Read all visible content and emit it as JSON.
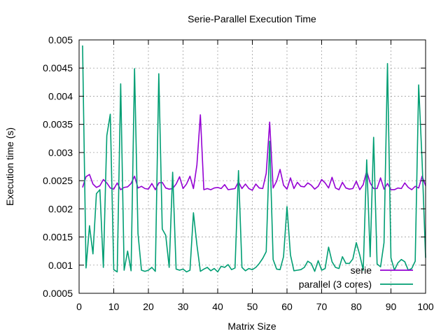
{
  "chart_data": {
    "type": "line",
    "title": "Serie-Parallel Execution Time",
    "xlabel": "Matrix Size",
    "ylabel": "Execution time (s)",
    "xlim": [
      0,
      100
    ],
    "ylim": [
      0.0005,
      0.005
    ],
    "xticks": [
      0,
      10,
      20,
      30,
      40,
      50,
      60,
      70,
      80,
      90,
      100
    ],
    "yticks": [
      0.0005,
      0.001,
      0.0015,
      0.002,
      0.0025,
      0.003,
      0.0035,
      0.004,
      0.0045,
      0.005
    ],
    "ytick_labels": [
      "0.0005",
      "0.001",
      "0.0015",
      "0.002",
      "0.0025",
      "0.003",
      "0.0035",
      "0.004",
      "0.0045",
      "0.005"
    ],
    "grid": true,
    "legend_position": "bottom-right",
    "x": [
      1,
      2,
      3,
      4,
      5,
      6,
      7,
      8,
      9,
      10,
      11,
      12,
      13,
      14,
      15,
      16,
      17,
      18,
      19,
      20,
      21,
      22,
      23,
      24,
      25,
      26,
      27,
      28,
      29,
      30,
      31,
      32,
      33,
      34,
      35,
      36,
      37,
      38,
      39,
      40,
      41,
      42,
      43,
      44,
      45,
      46,
      47,
      48,
      49,
      50,
      51,
      52,
      53,
      54,
      55,
      56,
      57,
      58,
      59,
      60,
      61,
      62,
      63,
      64,
      65,
      66,
      67,
      68,
      69,
      70,
      71,
      72,
      73,
      74,
      75,
      76,
      77,
      78,
      79,
      80,
      81,
      82,
      83,
      84,
      85,
      86,
      87,
      88,
      89,
      90,
      91,
      92,
      93,
      94,
      95,
      96,
      97,
      98,
      99,
      100
    ],
    "series": [
      {
        "name": "serie",
        "color": "#9400d3",
        "values": [
          0.00238,
          0.00257,
          0.00261,
          0.00244,
          0.00238,
          0.00241,
          0.00252,
          0.00246,
          0.00237,
          0.00235,
          0.00246,
          0.00234,
          0.00238,
          0.00239,
          0.00245,
          0.00258,
          0.00237,
          0.0024,
          0.00236,
          0.00235,
          0.00245,
          0.00234,
          0.00246,
          0.00247,
          0.00237,
          0.00235,
          0.00236,
          0.00244,
          0.00257,
          0.00236,
          0.00244,
          0.00258,
          0.00236,
          0.00278,
          0.00367,
          0.00234,
          0.00236,
          0.00234,
          0.00237,
          0.00238,
          0.00236,
          0.00243,
          0.00234,
          0.00235,
          0.00236,
          0.00248,
          0.00236,
          0.00244,
          0.00236,
          0.00233,
          0.00244,
          0.00237,
          0.00236,
          0.00263,
          0.00354,
          0.00237,
          0.00249,
          0.0027,
          0.00242,
          0.00235,
          0.00255,
          0.00236,
          0.00247,
          0.0024,
          0.00239,
          0.00246,
          0.00242,
          0.00235,
          0.0024,
          0.00252,
          0.00246,
          0.00237,
          0.00256,
          0.00237,
          0.00234,
          0.00247,
          0.00237,
          0.00235,
          0.00236,
          0.00249,
          0.00234,
          0.00243,
          0.00267,
          0.00246,
          0.00236,
          0.00236,
          0.00255,
          0.00235,
          0.00245,
          0.00234,
          0.00234,
          0.00237,
          0.00236,
          0.00246,
          0.00238,
          0.00234,
          0.0024,
          0.00237,
          0.00258,
          0.00241
        ]
      },
      {
        "name": "parallel (3 cores)",
        "color": "#009e73",
        "values": [
          0.0049,
          0.00095,
          0.0017,
          0.0012,
          0.00227,
          0.00234,
          0.00096,
          0.0033,
          0.00368,
          0.00092,
          0.00088,
          0.00422,
          0.00091,
          0.00125,
          0.0009,
          0.00449,
          0.00156,
          0.00091,
          0.00089,
          0.00091,
          0.00096,
          0.00089,
          0.0044,
          0.00164,
          0.00153,
          0.00096,
          0.00265,
          0.00093,
          0.00091,
          0.00093,
          0.00088,
          0.00091,
          0.00193,
          0.00136,
          0.00089,
          0.00093,
          0.00096,
          0.0009,
          0.00094,
          0.00088,
          0.00098,
          0.00096,
          0.00101,
          0.00092,
          0.00095,
          0.00268,
          0.00096,
          0.0009,
          0.00094,
          0.00092,
          0.00096,
          0.00103,
          0.00112,
          0.00124,
          0.0032,
          0.0011,
          0.00093,
          0.00092,
          0.00115,
          0.00204,
          0.00118,
          0.0009,
          0.00091,
          0.00092,
          0.00096,
          0.00107,
          0.00103,
          0.00089,
          0.00108,
          0.00091,
          0.00094,
          0.00132,
          0.00106,
          0.00096,
          0.00094,
          0.00115,
          0.00103,
          0.00103,
          0.00111,
          0.0014,
          0.00118,
          0.00091,
          0.00287,
          0.00115,
          0.00327,
          0.00102,
          0.00097,
          0.0014,
          0.00458,
          0.00113,
          0.00091,
          0.00104,
          0.0011,
          0.00106,
          0.00091,
          0.00094,
          0.00107,
          0.0042,
          0.00283,
          0.00113
        ]
      }
    ]
  }
}
